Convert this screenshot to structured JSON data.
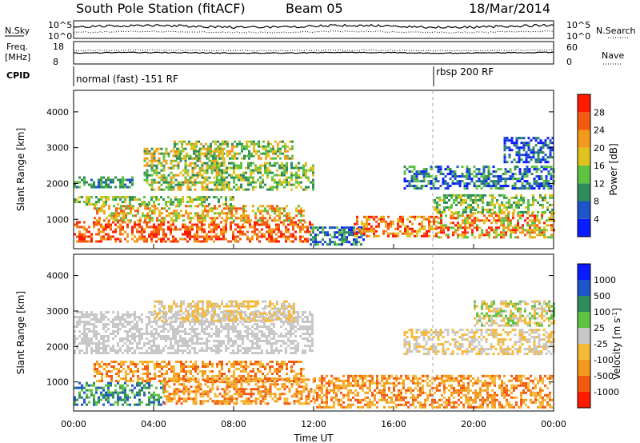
{
  "header": {
    "station": "South Pole Station (fitACF)",
    "beam": "Beam 05",
    "date": "18/Mar/2014"
  },
  "top_panels": {
    "nsky_label": "N.Sky",
    "nsearch_label": "N.Search",
    "nsky_ticks": [
      "10^5",
      "10^0"
    ],
    "freq_label_1": "Freq.",
    "freq_label_2": "[MHz]",
    "freq_ticks": [
      "18",
      "8"
    ],
    "freq_right_ticks": [
      "60",
      "0"
    ],
    "nave_label": "Nave",
    "cpid_label": "CPID",
    "modes": [
      {
        "name": "normal (fast) -151 RF",
        "start_hour": 0
      },
      {
        "name": "rbsp 200 RF",
        "start_hour": 18
      }
    ]
  },
  "chart_data": [
    {
      "type": "heatmap",
      "quantity": "Power",
      "xlabel": "",
      "ylabel": "Slant Range [km]",
      "colorbar_label": "Power [dB]",
      "colorbar_ticks": [
        "4",
        "8",
        "12",
        "16",
        "20",
        "24",
        "28"
      ],
      "x_range_hours": [
        0,
        24
      ],
      "y_range_km": [
        180,
        4600
      ],
      "y_ticks": [
        "1000",
        "2000",
        "3000",
        "4000"
      ],
      "colors": [
        "#0a1cff",
        "#1f55c8",
        "#2e8c5a",
        "#5dc241",
        "#e0c21e",
        "#f39a1c",
        "#f25a12",
        "#ff1a00"
      ],
      "bands": [
        {
          "t": [
            0.0,
            11.9
          ],
          "r": [
            380,
            950
          ],
          "val": [
            5,
            7
          ]
        },
        {
          "t": [
            1.0,
            11.5
          ],
          "r": [
            950,
            1400
          ],
          "val": [
            3,
            6
          ]
        },
        {
          "t": [
            0.0,
            8.0
          ],
          "r": [
            1400,
            1650
          ],
          "val": [
            2,
            4
          ]
        },
        {
          "t": [
            0.0,
            3.0
          ],
          "r": [
            1900,
            2200
          ],
          "val": [
            1,
            3
          ]
        },
        {
          "t": [
            3.5,
            7.5
          ],
          "r": [
            1800,
            3000
          ],
          "val": [
            2,
            5
          ]
        },
        {
          "t": [
            5.0,
            11.0
          ],
          "r": [
            2700,
            3200
          ],
          "val": [
            2,
            5
          ]
        },
        {
          "t": [
            7.0,
            12.0
          ],
          "r": [
            1800,
            2600
          ],
          "val": [
            2,
            4
          ]
        },
        {
          "t": [
            11.8,
            14.5
          ],
          "r": [
            280,
            800
          ],
          "val": [
            0,
            3
          ]
        },
        {
          "t": [
            14.0,
            18.2
          ],
          "r": [
            500,
            1100
          ],
          "val": [
            4,
            7
          ]
        },
        {
          "t": [
            18.2,
            24.0
          ],
          "r": [
            500,
            1200
          ],
          "val": [
            3,
            7
          ]
        },
        {
          "t": [
            18.0,
            24.0
          ],
          "r": [
            1200,
            1700
          ],
          "val": [
            2,
            4
          ]
        },
        {
          "t": [
            16.5,
            24.0
          ],
          "r": [
            1850,
            2500
          ],
          "val": [
            0,
            3
          ]
        },
        {
          "t": [
            21.5,
            24.0
          ],
          "r": [
            2600,
            3300
          ],
          "val": [
            0,
            2
          ]
        }
      ]
    },
    {
      "type": "heatmap",
      "quantity": "Velocity",
      "xlabel": "Time UT",
      "ylabel": "Slant Range [km]",
      "colorbar_label": "Velocity [m s",
      "colorbar_label_sup": "-1",
      "colorbar_label_end": "]",
      "colorbar_ticks": [
        "-1000",
        "-500",
        "-100",
        "-25",
        "25",
        "100",
        "500",
        "1000"
      ],
      "x_range_hours": [
        0,
        24
      ],
      "y_range_km": [
        180,
        4600
      ],
      "y_ticks": [
        "1000",
        "2000",
        "3000",
        "4000"
      ],
      "x_ticks": [
        "00:00",
        "04:00",
        "08:00",
        "12:00",
        "16:00",
        "20:00",
        "00:00"
      ],
      "colors": [
        "#ff1a00",
        "#f25a12",
        "#f39a1c",
        "#f5b93a",
        "#c8c8c8",
        "#5dc241",
        "#2e8c5a",
        "#1f55c8",
        "#0a1cff"
      ],
      "bands": [
        {
          "t": [
            0.0,
            4.5
          ],
          "r": [
            380,
            1000
          ],
          "val": [
            5,
            7
          ]
        },
        {
          "t": [
            4.5,
            12.0
          ],
          "r": [
            380,
            1100
          ],
          "val": [
            1,
            3
          ]
        },
        {
          "t": [
            12.0,
            24.0
          ],
          "r": [
            300,
            1200
          ],
          "val": [
            1,
            3
          ]
        },
        {
          "t": [
            1.0,
            11.5
          ],
          "r": [
            1000,
            1600
          ],
          "val": [
            1,
            3
          ]
        },
        {
          "t": [
            0.0,
            12.0
          ],
          "r": [
            1800,
            3000
          ],
          "val": [
            4,
            4
          ]
        },
        {
          "t": [
            4.0,
            11.0
          ],
          "r": [
            2700,
            3300
          ],
          "val": [
            3,
            4
          ]
        },
        {
          "t": [
            16.5,
            24.0
          ],
          "r": [
            1800,
            2500
          ],
          "val": [
            3,
            4
          ]
        },
        {
          "t": [
            20.0,
            24.0
          ],
          "r": [
            2600,
            3300
          ],
          "val": [
            3,
            5
          ]
        }
      ]
    }
  ]
}
